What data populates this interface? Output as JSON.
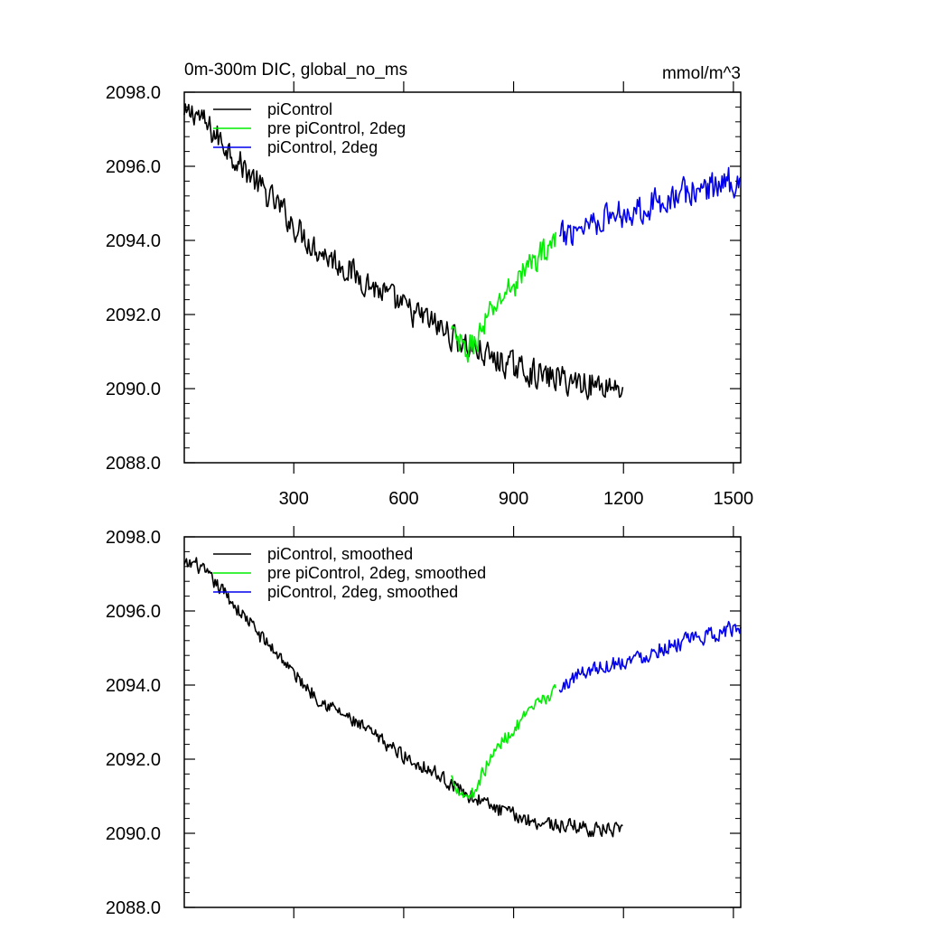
{
  "chart_data": [
    {
      "type": "line",
      "title": "0m-300m DIC, global_no_ms",
      "units": "mmol/m^3",
      "xlim": [
        1,
        1520
      ],
      "ylim": [
        2088.0,
        2098.0
      ],
      "x_ticks": [
        300,
        600,
        900,
        1200,
        1500
      ],
      "x_tick_labels": [
        "300",
        "600",
        "900",
        "1200",
        "1500"
      ],
      "y_ticks": [
        2088.0,
        2090.0,
        2092.0,
        2094.0,
        2096.0,
        2098.0
      ],
      "y_tick_labels": [
        "2088.0",
        "2090.0",
        "2092.0",
        "2094.0",
        "2096.0",
        "2098.0"
      ],
      "grid": false,
      "legend_position": "top-left",
      "series": [
        {
          "name": "piControl",
          "color": "#000000",
          "x": [
            1,
            30,
            60,
            90,
            120,
            150,
            180,
            210,
            240,
            270,
            300,
            330,
            360,
            390,
            420,
            450,
            480,
            510,
            540,
            570,
            600,
            630,
            660,
            690,
            720,
            750,
            780,
            810,
            840,
            870,
            900,
            930,
            960,
            990,
            1020,
            1050,
            1080,
            1110,
            1140,
            1170,
            1200
          ],
          "values": [
            2097.3,
            2097.5,
            2097.1,
            2096.8,
            2096.5,
            2096.1,
            2095.8,
            2095.4,
            2095.1,
            2094.8,
            2094.4,
            2094.1,
            2093.8,
            2093.6,
            2093.4,
            2093.2,
            2093.0,
            2092.8,
            2092.6,
            2092.4,
            2092.2,
            2092.0,
            2091.9,
            2091.7,
            2091.5,
            2091.3,
            2091.1,
            2091.0,
            2090.8,
            2090.7,
            2090.6,
            2090.5,
            2090.4,
            2090.3,
            2090.3,
            2090.2,
            2090.2,
            2090.1,
            2090.1,
            2090.1,
            2090.0
          ],
          "noise": 0.35
        },
        {
          "name": "pre piControl, 2deg",
          "color": "#00ee00",
          "x": [
            730,
            750,
            770,
            790,
            810,
            830,
            850,
            870,
            890,
            910,
            930,
            950,
            970,
            990,
            1015
          ],
          "values": [
            2091.5,
            2091.2,
            2091.0,
            2091.2,
            2091.5,
            2091.9,
            2092.2,
            2092.5,
            2092.7,
            2092.9,
            2093.2,
            2093.4,
            2093.6,
            2093.8,
            2094.0
          ],
          "noise": 0.35
        },
        {
          "name": "piControl, 2deg",
          "color": "#0000ee",
          "x": [
            1025,
            1060,
            1100,
            1140,
            1180,
            1220,
            1260,
            1300,
            1340,
            1380,
            1420,
            1460,
            1490,
            1520
          ],
          "values": [
            2094.0,
            2094.3,
            2094.5,
            2094.6,
            2094.7,
            2094.8,
            2094.9,
            2095.1,
            2095.2,
            2095.3,
            2095.4,
            2095.5,
            2095.6,
            2095.6
          ],
          "noise": 0.38
        }
      ]
    },
    {
      "type": "line",
      "xlim": [
        1,
        1520
      ],
      "ylim": [
        2088.0,
        2098.0
      ],
      "x_ticks": [
        300,
        600,
        900,
        1200,
        1500
      ],
      "y_ticks": [
        2088.0,
        2090.0,
        2092.0,
        2094.0,
        2096.0,
        2098.0
      ],
      "y_tick_labels": [
        "2088.0",
        "2090.0",
        "2092.0",
        "2094.0",
        "2096.0",
        "2098.0"
      ],
      "grid": false,
      "legend_position": "top-left",
      "series": [
        {
          "name": "piControl, smoothed",
          "color": "#000000",
          "x": [
            1,
            30,
            60,
            90,
            120,
            150,
            180,
            210,
            240,
            270,
            300,
            330,
            360,
            390,
            420,
            450,
            480,
            510,
            540,
            570,
            600,
            630,
            660,
            690,
            720,
            750,
            780,
            810,
            840,
            870,
            900,
            930,
            960,
            990,
            1020,
            1050,
            1080,
            1110,
            1140,
            1170,
            1200
          ],
          "values": [
            2097.2,
            2097.3,
            2097.0,
            2096.7,
            2096.4,
            2096.0,
            2095.7,
            2095.3,
            2095.0,
            2094.7,
            2094.3,
            2094.0,
            2093.7,
            2093.5,
            2093.3,
            2093.1,
            2092.9,
            2092.7,
            2092.5,
            2092.3,
            2092.1,
            2091.9,
            2091.8,
            2091.6,
            2091.4,
            2091.2,
            2091.0,
            2090.9,
            2090.7,
            2090.6,
            2090.5,
            2090.4,
            2090.3,
            2090.3,
            2090.2,
            2090.2,
            2090.2,
            2090.1,
            2090.1,
            2090.1,
            2090.0
          ],
          "noise": 0.18
        },
        {
          "name": "pre piControl, 2deg, smoothed",
          "color": "#00ee00",
          "x": [
            730,
            750,
            770,
            790,
            810,
            830,
            850,
            870,
            890,
            910,
            930,
            950,
            970,
            990,
            1015
          ],
          "values": [
            2091.5,
            2091.2,
            2091.0,
            2091.1,
            2091.5,
            2091.9,
            2092.2,
            2092.5,
            2092.7,
            2092.9,
            2093.1,
            2093.3,
            2093.5,
            2093.7,
            2093.8
          ],
          "noise": 0.18
        },
        {
          "name": "piControl, 2deg, smoothed",
          "color": "#0000ee",
          "x": [
            1025,
            1060,
            1100,
            1140,
            1180,
            1220,
            1260,
            1300,
            1340,
            1380,
            1420,
            1460,
            1490,
            1520
          ],
          "values": [
            2093.8,
            2094.2,
            2094.4,
            2094.5,
            2094.6,
            2094.7,
            2094.8,
            2095.0,
            2095.1,
            2095.2,
            2095.3,
            2095.4,
            2095.5,
            2095.5
          ],
          "noise": 0.2
        }
      ]
    }
  ]
}
